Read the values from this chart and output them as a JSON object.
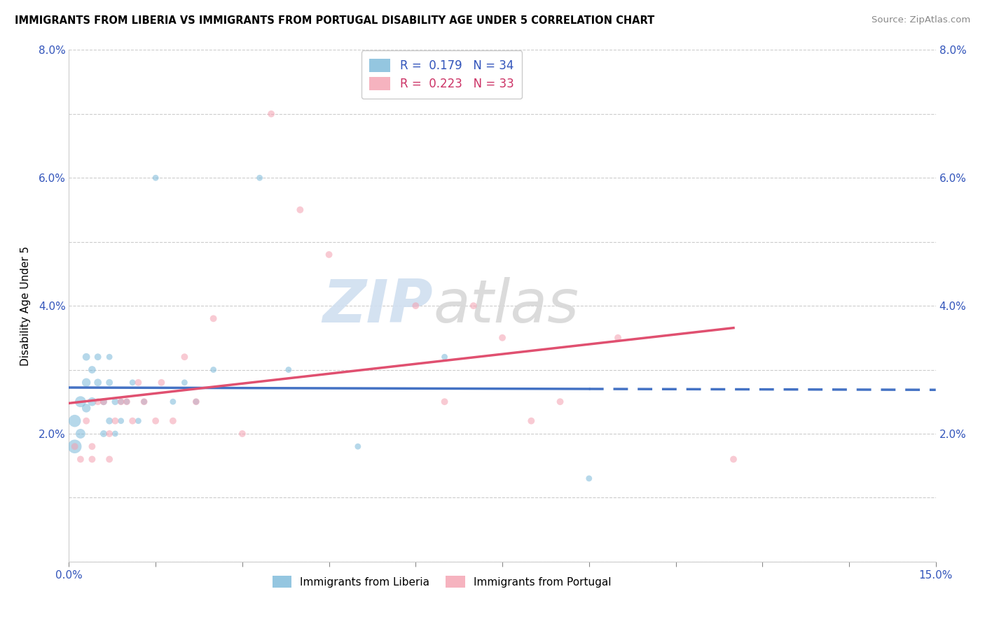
{
  "title": "IMMIGRANTS FROM LIBERIA VS IMMIGRANTS FROM PORTUGAL DISABILITY AGE UNDER 5 CORRELATION CHART",
  "source": "Source: ZipAtlas.com",
  "ylabel": "Disability Age Under 5",
  "xlim": [
    0.0,
    0.15
  ],
  "ylim": [
    0.0,
    0.08
  ],
  "xticks": [
    0.0,
    0.015,
    0.03,
    0.045,
    0.06,
    0.075,
    0.09,
    0.105,
    0.12,
    0.135,
    0.15
  ],
  "xticklabels": [
    "0.0%",
    "",
    "",
    "",
    "",
    "",
    "",
    "",
    "",
    "",
    "15.0%"
  ],
  "yticks": [
    0.0,
    0.01,
    0.02,
    0.03,
    0.04,
    0.05,
    0.06,
    0.07,
    0.08
  ],
  "yticklabels_left": [
    "",
    "",
    "2.0%",
    "",
    "4.0%",
    "",
    "6.0%",
    "",
    "8.0%"
  ],
  "yticklabels_right": [
    "",
    "",
    "2.0%",
    "",
    "4.0%",
    "",
    "6.0%",
    "",
    "8.0%"
  ],
  "liberia_color": "#7ab8d9",
  "portugal_color": "#f4a0b0",
  "liberia_line_color": "#4472c4",
  "portugal_line_color": "#e05070",
  "R_liberia": 0.179,
  "N_liberia": 34,
  "R_portugal": 0.223,
  "N_portugal": 33,
  "liberia_x": [
    0.001,
    0.001,
    0.002,
    0.002,
    0.003,
    0.003,
    0.003,
    0.004,
    0.004,
    0.005,
    0.005,
    0.006,
    0.006,
    0.007,
    0.007,
    0.007,
    0.008,
    0.008,
    0.009,
    0.009,
    0.01,
    0.011,
    0.012,
    0.013,
    0.015,
    0.018,
    0.02,
    0.022,
    0.025,
    0.033,
    0.038,
    0.05,
    0.065,
    0.09
  ],
  "liberia_y": [
    0.018,
    0.022,
    0.025,
    0.02,
    0.024,
    0.028,
    0.032,
    0.025,
    0.03,
    0.028,
    0.032,
    0.025,
    0.02,
    0.022,
    0.028,
    0.032,
    0.025,
    0.02,
    0.025,
    0.022,
    0.025,
    0.028,
    0.022,
    0.025,
    0.06,
    0.025,
    0.028,
    0.025,
    0.03,
    0.06,
    0.03,
    0.018,
    0.032,
    0.013
  ],
  "liberia_size": [
    200,
    160,
    130,
    100,
    80,
    80,
    60,
    80,
    60,
    60,
    50,
    50,
    50,
    50,
    50,
    40,
    50,
    40,
    40,
    40,
    40,
    40,
    40,
    40,
    40,
    40,
    40,
    40,
    40,
    40,
    40,
    40,
    40,
    40
  ],
  "portugal_x": [
    0.001,
    0.002,
    0.003,
    0.004,
    0.004,
    0.005,
    0.006,
    0.007,
    0.007,
    0.008,
    0.009,
    0.01,
    0.011,
    0.012,
    0.013,
    0.015,
    0.016,
    0.018,
    0.02,
    0.022,
    0.025,
    0.03,
    0.035,
    0.04,
    0.045,
    0.06,
    0.065,
    0.07,
    0.075,
    0.08,
    0.085,
    0.095,
    0.115
  ],
  "portugal_y": [
    0.018,
    0.016,
    0.022,
    0.016,
    0.018,
    0.025,
    0.025,
    0.02,
    0.016,
    0.022,
    0.025,
    0.025,
    0.022,
    0.028,
    0.025,
    0.022,
    0.028,
    0.022,
    0.032,
    0.025,
    0.038,
    0.02,
    0.07,
    0.055,
    0.048,
    0.04,
    0.025,
    0.04,
    0.035,
    0.022,
    0.025,
    0.035,
    0.016
  ],
  "portugal_size": [
    50,
    50,
    50,
    50,
    50,
    50,
    50,
    50,
    50,
    50,
    50,
    50,
    50,
    50,
    50,
    50,
    50,
    50,
    50,
    50,
    50,
    50,
    50,
    50,
    50,
    50,
    50,
    50,
    50,
    50,
    50,
    50,
    50
  ],
  "watermark_left": "ZIP",
  "watermark_right": "atlas",
  "watermark_left_color": "#d0dff0",
  "watermark_right_color": "#d8d8d8",
  "background_color": "#ffffff",
  "grid_color": "#cccccc",
  "legend_text_color_liberia": "#3355bb",
  "legend_text_color_portugal": "#cc3366"
}
